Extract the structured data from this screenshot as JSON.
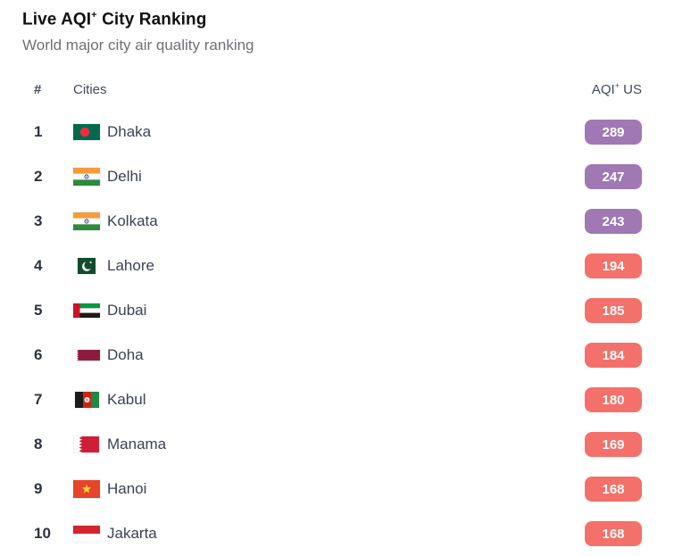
{
  "page": {
    "title_pre": "Live AQI",
    "title_sup": "+",
    "title_post": " City Ranking",
    "subtitle": "World major city air quality ranking"
  },
  "table": {
    "header": {
      "rank": "#",
      "cities": "Cities",
      "aqi_pre": "AQI",
      "aqi_sup": "+",
      "aqi_post": " US"
    },
    "rows": [
      {
        "rank": "1",
        "city": "Dhaka",
        "flag": "bangladesh",
        "aqi": "289",
        "level": "very-unhealthy"
      },
      {
        "rank": "2",
        "city": "Delhi",
        "flag": "india",
        "aqi": "247",
        "level": "very-unhealthy"
      },
      {
        "rank": "3",
        "city": "Kolkata",
        "flag": "india",
        "aqi": "243",
        "level": "very-unhealthy"
      },
      {
        "rank": "4",
        "city": "Lahore",
        "flag": "pakistan",
        "aqi": "194",
        "level": "unhealthy"
      },
      {
        "rank": "5",
        "city": "Dubai",
        "flag": "uae",
        "aqi": "185",
        "level": "unhealthy"
      },
      {
        "rank": "6",
        "city": "Doha",
        "flag": "qatar",
        "aqi": "184",
        "level": "unhealthy"
      },
      {
        "rank": "7",
        "city": "Kabul",
        "flag": "afghanistan",
        "aqi": "180",
        "level": "unhealthy"
      },
      {
        "rank": "8",
        "city": "Manama",
        "flag": "bahrain",
        "aqi": "169",
        "level": "unhealthy"
      },
      {
        "rank": "9",
        "city": "Hanoi",
        "flag": "vietnam",
        "aqi": "168",
        "level": "unhealthy"
      },
      {
        "rank": "10",
        "city": "Jakarta",
        "flag": "indonesia",
        "aqi": "168",
        "level": "unhealthy"
      }
    ]
  },
  "colors": {
    "very-unhealthy": "#a078b4",
    "unhealthy": "#f4706a"
  }
}
